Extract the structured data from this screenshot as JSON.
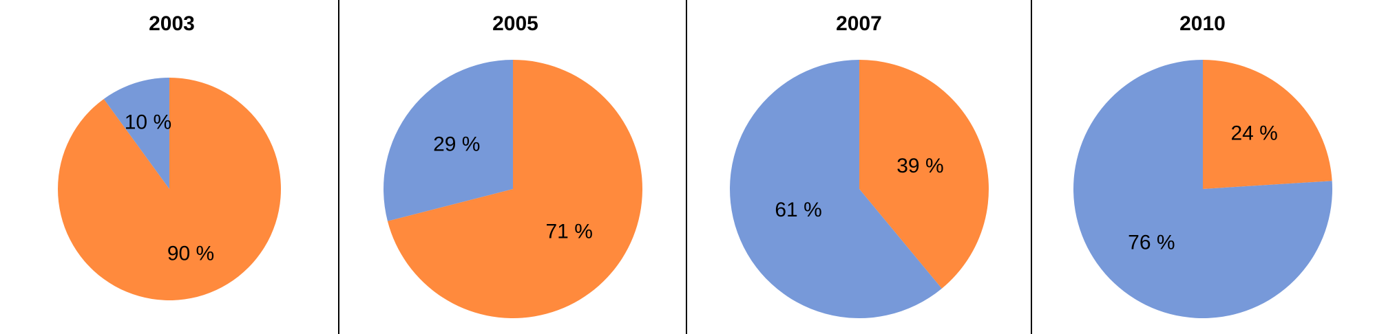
{
  "chart_data": [
    {
      "type": "pie",
      "title": "2003",
      "categories": [
        "",
        ""
      ],
      "values": [
        90,
        10
      ],
      "labels": [
        "90 %",
        "10 %"
      ],
      "colors": [
        "#FF8A3D",
        "#7799D9"
      ]
    },
    {
      "type": "pie",
      "title": "2005",
      "categories": [
        "",
        ""
      ],
      "values": [
        71,
        29
      ],
      "labels": [
        "71 %",
        "29 %"
      ],
      "colors": [
        "#FF8A3D",
        "#7799D9"
      ]
    },
    {
      "type": "pie",
      "title": "2007",
      "categories": [
        "",
        ""
      ],
      "values": [
        39,
        61
      ],
      "labels": [
        "39 %",
        "61 %"
      ],
      "colors": [
        "#FF8A3D",
        "#7799D9"
      ]
    },
    {
      "type": "pie",
      "title": "2010",
      "categories": [
        "",
        ""
      ],
      "values": [
        24,
        76
      ],
      "labels": [
        "24 %",
        "76 %"
      ],
      "colors": [
        "#FF8A3D",
        "#7799D9"
      ]
    }
  ]
}
